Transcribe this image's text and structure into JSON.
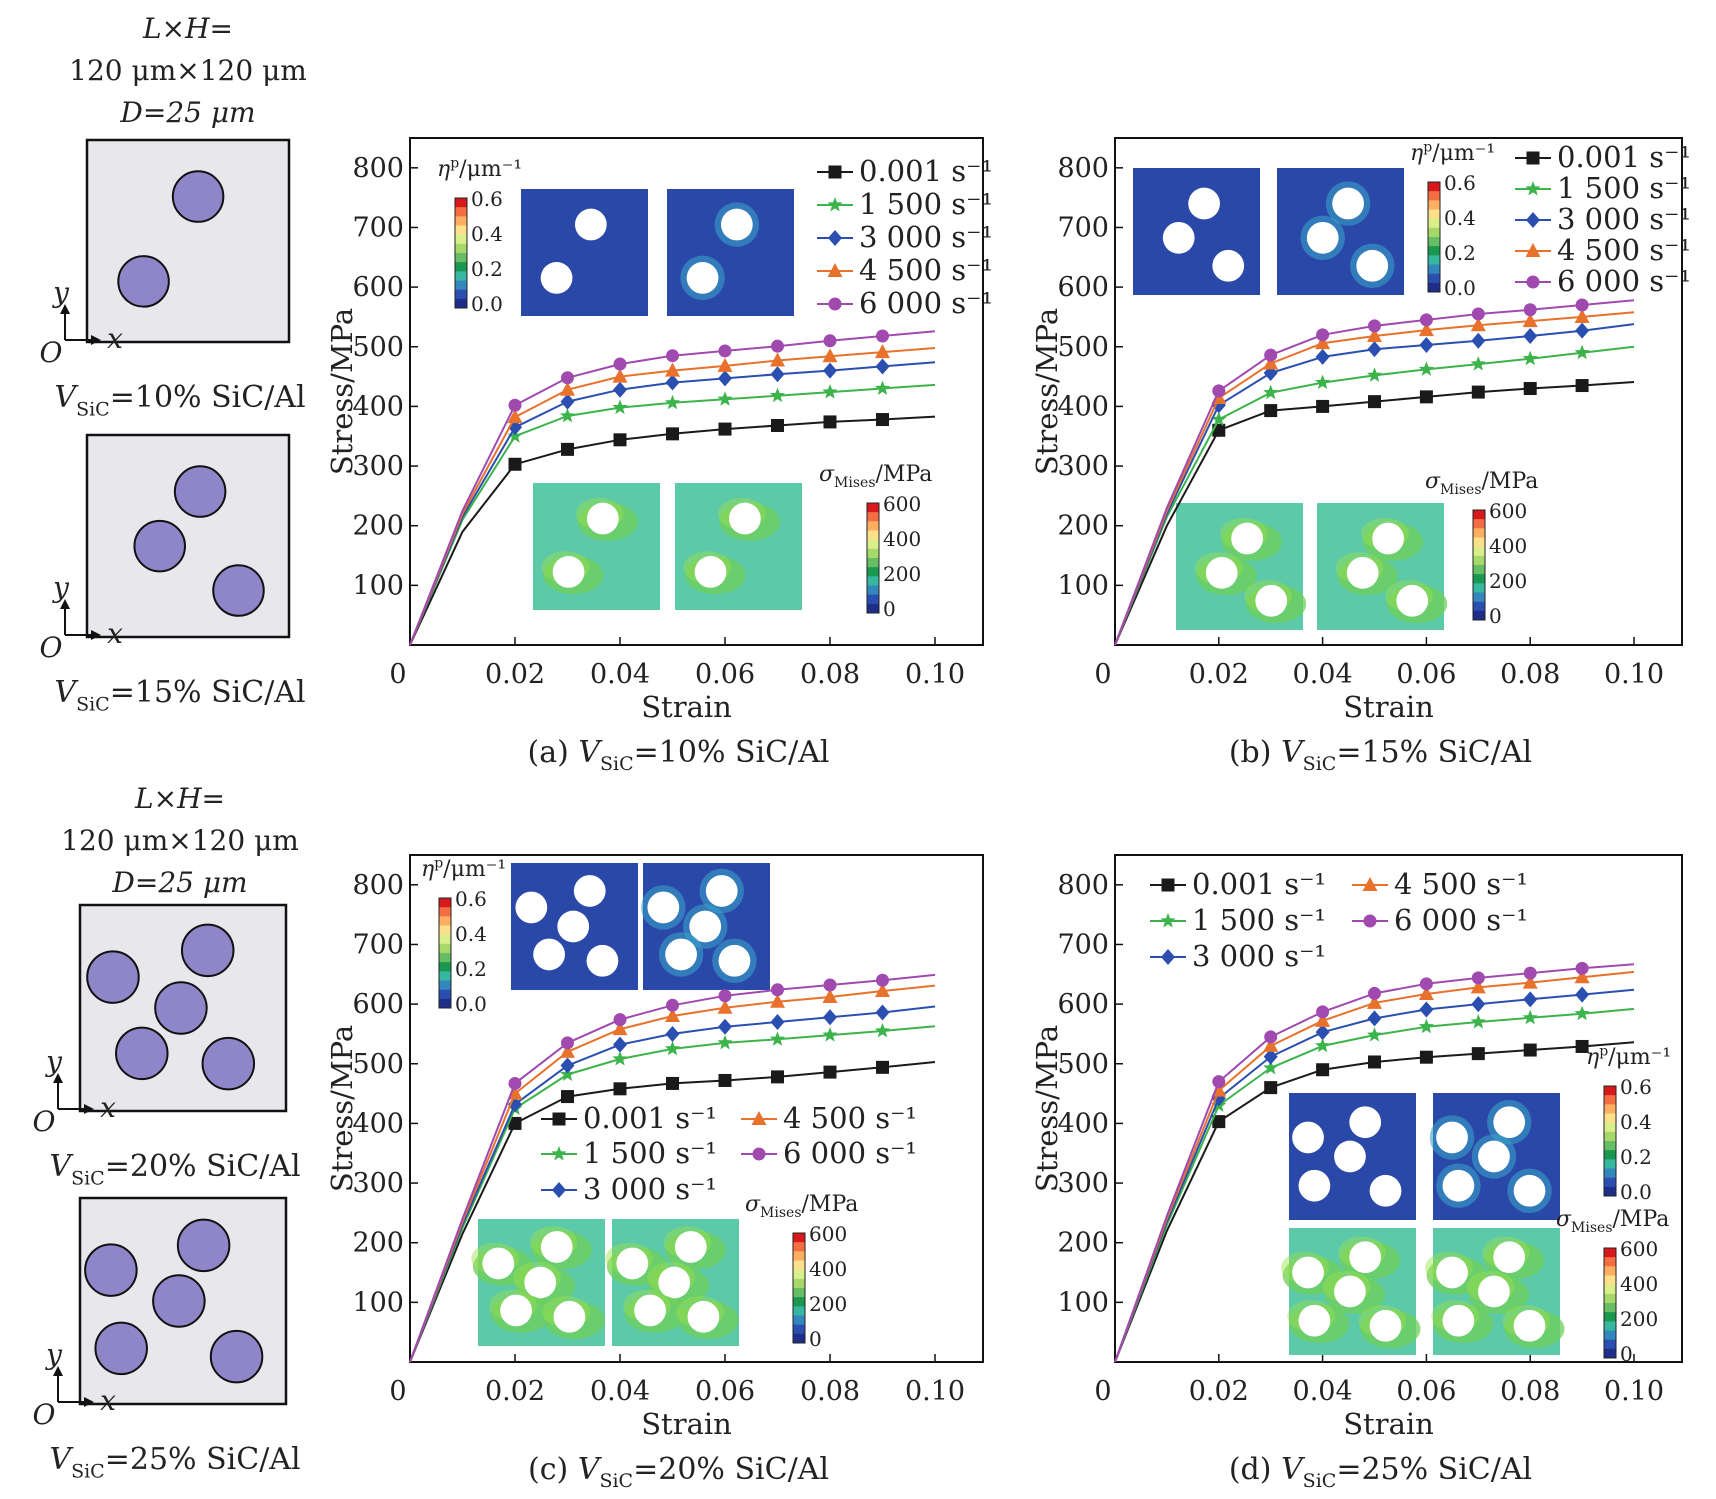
{
  "schematics": [
    {
      "header": [
        "L×H=",
        "120 μm×120 μm",
        "D=25 μm"
      ],
      "label": "V",
      "label_sub": "SiC",
      "label_rest": "=10% SiC/Al",
      "axis_y": "y",
      "axis_x": "x",
      "origin": "O",
      "particles": [
        [
          0.55,
          0.28
        ],
        [
          0.28,
          0.7
        ]
      ]
    },
    {
      "header": [],
      "label": "V",
      "label_sub": "SiC",
      "label_rest": "=15% SiC/Al",
      "axis_y": "y",
      "axis_x": "x",
      "origin": "O",
      "particles": [
        [
          0.56,
          0.28
        ],
        [
          0.36,
          0.55
        ],
        [
          0.75,
          0.77
        ]
      ]
    },
    {
      "header": [
        "L×H=",
        "120 μm×120 μm",
        "D=25 μm"
      ],
      "label": "V",
      "label_sub": "SiC",
      "label_rest": "=20% SiC/Al",
      "axis_y": "y",
      "axis_x": "x",
      "origin": "O",
      "particles": [
        [
          0.62,
          0.22
        ],
        [
          0.16,
          0.35
        ],
        [
          0.49,
          0.5
        ],
        [
          0.3,
          0.72
        ],
        [
          0.72,
          0.77
        ]
      ]
    },
    {
      "header": [],
      "label": "V",
      "label_sub": "SiC",
      "label_rest": "=25% SiC/Al",
      "axis_y": "y",
      "axis_x": "x",
      "origin": "O",
      "particles": [
        [
          0.6,
          0.23
        ],
        [
          0.15,
          0.35
        ],
        [
          0.48,
          0.5
        ],
        [
          0.2,
          0.73
        ],
        [
          0.76,
          0.77
        ]
      ]
    }
  ],
  "legend_labels": [
    "0.001 s⁻¹",
    "1 500 s⁻¹",
    "3 000 s⁻¹",
    "4 500 s⁻¹",
    "6 000 s⁻¹"
  ],
  "colorbars": {
    "eta": {
      "title_main": "η",
      "title_sup": "p",
      "title_rest": "/μm⁻¹",
      "ticks": [
        "0.6",
        "0.4",
        "0.2",
        "0.0"
      ]
    },
    "mises": {
      "title_main": "σ",
      "title_sub": "Mises",
      "title_rest": "/MPa",
      "ticks": [
        "600",
        "400",
        "200",
        "0"
      ]
    }
  },
  "colors": {
    "series": [
      "#1a1a1a",
      "#3cb44b",
      "#2a4fb0",
      "#e8712c",
      "#a04ab0"
    ],
    "eta_bg": "#2a48a8",
    "mises_bg": "#5cc9a8"
  },
  "chart_data": [
    {
      "type": "line",
      "caption_prefix": "(a)",
      "caption_rest": "=10% SiC/Al",
      "xlabel": "Strain",
      "ylabel": "Stress/MPa",
      "xlim": [
        0,
        0.1
      ],
      "ylim": [
        0,
        850
      ],
      "xticks": [
        "0",
        "0.02",
        "0.04",
        "0.06",
        "0.08",
        "0.10"
      ],
      "yticks": [
        "100",
        "200",
        "300",
        "400",
        "500",
        "600",
        "700",
        "800"
      ],
      "legend": "top-right",
      "series": [
        {
          "name": "0.001 s⁻¹",
          "marker": "square",
          "x": [
            0,
            0.01,
            0.02,
            0.03,
            0.04,
            0.05,
            0.06,
            0.07,
            0.08,
            0.09,
            0.1
          ],
          "y": [
            0,
            190,
            303,
            328,
            344,
            354,
            362,
            368,
            374,
            378,
            383
          ]
        },
        {
          "name": "1 500 s⁻¹",
          "marker": "star",
          "x": [
            0,
            0.01,
            0.02,
            0.03,
            0.04,
            0.05,
            0.06,
            0.07,
            0.08,
            0.09,
            0.1
          ],
          "y": [
            0,
            210,
            350,
            384,
            398,
            406,
            412,
            418,
            424,
            430,
            436
          ]
        },
        {
          "name": "3 000 s⁻¹",
          "marker": "diamond",
          "x": [
            0,
            0.01,
            0.02,
            0.03,
            0.04,
            0.05,
            0.06,
            0.07,
            0.08,
            0.09,
            0.1
          ],
          "y": [
            0,
            215,
            365,
            408,
            428,
            440,
            447,
            454,
            460,
            467,
            474
          ]
        },
        {
          "name": "4 500 s⁻¹",
          "marker": "triangle",
          "x": [
            0,
            0.01,
            0.02,
            0.03,
            0.04,
            0.05,
            0.06,
            0.07,
            0.08,
            0.09,
            0.1
          ],
          "y": [
            0,
            220,
            382,
            428,
            450,
            460,
            468,
            477,
            484,
            491,
            498
          ]
        },
        {
          "name": "6 000 s⁻¹",
          "marker": "circle",
          "x": [
            0,
            0.01,
            0.02,
            0.03,
            0.04,
            0.05,
            0.06,
            0.07,
            0.08,
            0.09,
            0.1
          ],
          "y": [
            0,
            225,
            402,
            448,
            471,
            485,
            493,
            501,
            510,
            518,
            526
          ]
        }
      ]
    },
    {
      "type": "line",
      "caption_prefix": "(b)",
      "caption_rest": "=15% SiC/Al",
      "xlabel": "Strain",
      "ylabel": "Stress/MPa",
      "xlim": [
        0,
        0.1
      ],
      "ylim": [
        0,
        850
      ],
      "xticks": [
        "0",
        "0.02",
        "0.04",
        "0.06",
        "0.08",
        "0.10"
      ],
      "yticks": [
        "100",
        "200",
        "300",
        "400",
        "500",
        "600",
        "700",
        "800"
      ],
      "legend": "top-right",
      "series": [
        {
          "name": "0.001 s⁻¹",
          "marker": "square",
          "x": [
            0,
            0.01,
            0.02,
            0.03,
            0.04,
            0.05,
            0.06,
            0.07,
            0.08,
            0.09,
            0.1
          ],
          "y": [
            0,
            200,
            360,
            393,
            400,
            408,
            416,
            424,
            430,
            435,
            441
          ]
        },
        {
          "name": "1 500 s⁻¹",
          "marker": "star",
          "x": [
            0,
            0.01,
            0.02,
            0.03,
            0.04,
            0.05,
            0.06,
            0.07,
            0.08,
            0.09,
            0.1
          ],
          "y": [
            0,
            215,
            378,
            423,
            440,
            452,
            462,
            471,
            480,
            490,
            500
          ]
        },
        {
          "name": "3 000 s⁻¹",
          "marker": "diamond",
          "x": [
            0,
            0.01,
            0.02,
            0.03,
            0.04,
            0.05,
            0.06,
            0.07,
            0.08,
            0.09,
            0.1
          ],
          "y": [
            0,
            220,
            402,
            456,
            483,
            496,
            503,
            510,
            518,
            527,
            538
          ]
        },
        {
          "name": "4 500 s⁻¹",
          "marker": "triangle",
          "x": [
            0,
            0.01,
            0.02,
            0.03,
            0.04,
            0.05,
            0.06,
            0.07,
            0.08,
            0.09,
            0.1
          ],
          "y": [
            0,
            225,
            414,
            472,
            506,
            518,
            528,
            536,
            543,
            550,
            558
          ]
        },
        {
          "name": "6 000 s⁻¹",
          "marker": "circle",
          "x": [
            0,
            0.01,
            0.02,
            0.03,
            0.04,
            0.05,
            0.06,
            0.07,
            0.08,
            0.09,
            0.1
          ],
          "y": [
            0,
            230,
            426,
            486,
            520,
            535,
            545,
            555,
            562,
            570,
            578
          ]
        }
      ]
    },
    {
      "type": "line",
      "caption_prefix": "(c)",
      "caption_rest": "=20% SiC/Al",
      "xlabel": "Strain",
      "ylabel": "Stress/MPa",
      "xlim": [
        0,
        0.1
      ],
      "ylim": [
        0,
        850
      ],
      "xticks": [
        "0",
        "0.02",
        "0.04",
        "0.06",
        "0.08",
        "0.10"
      ],
      "yticks": [
        "100",
        "200",
        "300",
        "400",
        "500",
        "600",
        "700",
        "800"
      ],
      "legend": "center",
      "series": [
        {
          "name": "0.001 s⁻¹",
          "marker": "square",
          "x": [
            0,
            0.01,
            0.02,
            0.03,
            0.04,
            0.05,
            0.06,
            0.07,
            0.08,
            0.09,
            0.1
          ],
          "y": [
            0,
            215,
            400,
            445,
            458,
            467,
            472,
            478,
            486,
            494,
            503
          ]
        },
        {
          "name": "1 500 s⁻¹",
          "marker": "star",
          "x": [
            0,
            0.01,
            0.02,
            0.03,
            0.04,
            0.05,
            0.06,
            0.07,
            0.08,
            0.09,
            0.1
          ],
          "y": [
            0,
            225,
            425,
            482,
            508,
            525,
            535,
            541,
            548,
            555,
            563
          ]
        },
        {
          "name": "3 000 s⁻¹",
          "marker": "diamond",
          "x": [
            0,
            0.01,
            0.02,
            0.03,
            0.04,
            0.05,
            0.06,
            0.07,
            0.08,
            0.09,
            0.1
          ],
          "y": [
            0,
            230,
            432,
            497,
            532,
            550,
            562,
            570,
            578,
            586,
            596
          ]
        },
        {
          "name": "4 500 s⁻¹",
          "marker": "triangle",
          "x": [
            0,
            0.01,
            0.02,
            0.03,
            0.04,
            0.05,
            0.06,
            0.07,
            0.08,
            0.09,
            0.1
          ],
          "y": [
            0,
            235,
            450,
            520,
            558,
            580,
            594,
            604,
            612,
            622,
            631
          ]
        },
        {
          "name": "6 000 s⁻¹",
          "marker": "circle",
          "x": [
            0,
            0.01,
            0.02,
            0.03,
            0.04,
            0.05,
            0.06,
            0.07,
            0.08,
            0.09,
            0.1
          ],
          "y": [
            0,
            240,
            467,
            535,
            574,
            598,
            614,
            624,
            632,
            640,
            649
          ]
        }
      ]
    },
    {
      "type": "line",
      "caption_prefix": "(d)",
      "caption_rest": "=25% SiC/Al",
      "xlabel": "Strain",
      "ylabel": "Stress/MPa",
      "xlim": [
        0,
        0.1
      ],
      "ylim": [
        0,
        850
      ],
      "xticks": [
        "0",
        "0.02",
        "0.04",
        "0.06",
        "0.08",
        "0.10"
      ],
      "yticks": [
        "100",
        "200",
        "300",
        "400",
        "500",
        "600",
        "700",
        "800"
      ],
      "legend": "top-left",
      "series": [
        {
          "name": "0.001 s⁻¹",
          "marker": "square",
          "x": [
            0,
            0.01,
            0.02,
            0.03,
            0.04,
            0.05,
            0.06,
            0.07,
            0.08,
            0.09,
            0.1
          ],
          "y": [
            0,
            220,
            403,
            460,
            490,
            503,
            511,
            517,
            523,
            529,
            536
          ]
        },
        {
          "name": "1 500 s⁻¹",
          "marker": "star",
          "x": [
            0,
            0.01,
            0.02,
            0.03,
            0.04,
            0.05,
            0.06,
            0.07,
            0.08,
            0.09,
            0.1
          ],
          "y": [
            0,
            230,
            430,
            493,
            530,
            548,
            562,
            570,
            577,
            584,
            592
          ]
        },
        {
          "name": "3 000 s⁻¹",
          "marker": "diamond",
          "x": [
            0,
            0.01,
            0.02,
            0.03,
            0.04,
            0.05,
            0.06,
            0.07,
            0.08,
            0.09,
            0.1
          ],
          "y": [
            0,
            235,
            442,
            512,
            553,
            576,
            591,
            600,
            608,
            616,
            624
          ]
        },
        {
          "name": "4 500 s⁻¹",
          "marker": "triangle",
          "x": [
            0,
            0.01,
            0.02,
            0.03,
            0.04,
            0.05,
            0.06,
            0.07,
            0.08,
            0.09,
            0.1
          ],
          "y": [
            0,
            240,
            455,
            530,
            572,
            602,
            617,
            628,
            636,
            645,
            654
          ]
        },
        {
          "name": "6 000 s⁻¹",
          "marker": "circle",
          "x": [
            0,
            0.01,
            0.02,
            0.03,
            0.04,
            0.05,
            0.06,
            0.07,
            0.08,
            0.09,
            0.1
          ],
          "y": [
            0,
            245,
            470,
            545,
            587,
            618,
            634,
            644,
            652,
            660,
            667
          ]
        }
      ]
    }
  ]
}
